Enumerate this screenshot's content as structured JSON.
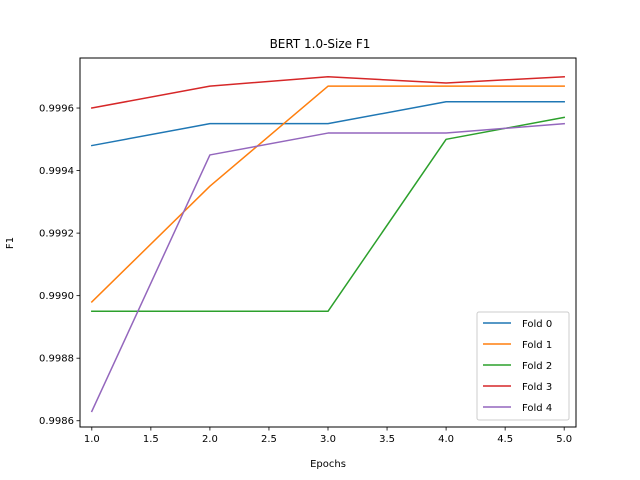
{
  "chart_data": {
    "type": "line",
    "title": "BERT 1.0-Size F1",
    "xlabel": "Epochs",
    "ylabel": "F1",
    "xlim": [
      0.9,
      5.1
    ],
    "ylim": [
      0.99858,
      0.99976
    ],
    "x_ticks": [
      "1.0",
      "1.5",
      "2.0",
      "2.5",
      "3.0",
      "3.5",
      "4.0",
      "4.5",
      "5.0"
    ],
    "y_ticks": [
      "0.9986",
      "0.9988",
      "0.9990",
      "0.9992",
      "0.9994",
      "0.9996"
    ],
    "grid": false,
    "legend_position": "lower-right",
    "x": [
      1,
      2,
      3,
      4,
      5
    ],
    "series": [
      {
        "name": "Fold 0",
        "color": "#1f77b4",
        "values": [
          0.99948,
          0.99955,
          0.99955,
          0.99962,
          0.99962
        ]
      },
      {
        "name": "Fold 1",
        "color": "#ff7f0e",
        "values": [
          0.99898,
          0.99935,
          0.99967,
          0.99967,
          0.99967
        ]
      },
      {
        "name": "Fold 2",
        "color": "#2ca02c",
        "values": [
          0.99895,
          0.99895,
          0.99895,
          0.9995,
          0.99957
        ]
      },
      {
        "name": "Fold 3",
        "color": "#d62728",
        "values": [
          0.9996,
          0.99967,
          0.9997,
          0.99968,
          0.9997
        ]
      },
      {
        "name": "Fold 4",
        "color": "#9467bd",
        "values": [
          0.99863,
          0.99945,
          0.99952,
          0.99952,
          0.99955
        ]
      }
    ]
  }
}
